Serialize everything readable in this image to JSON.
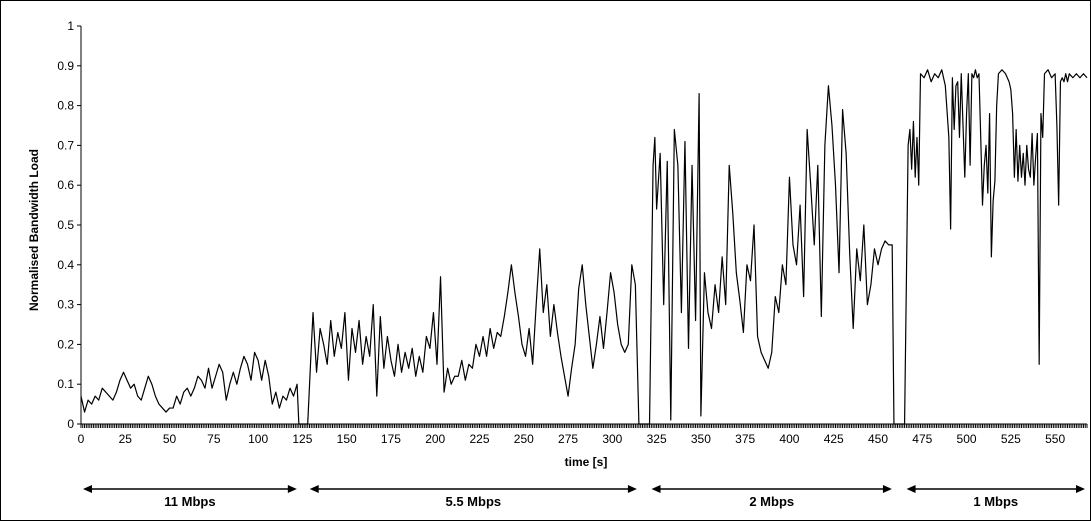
{
  "chart_data": {
    "type": "line",
    "title": "",
    "xlabel": "time [s]",
    "ylabel": "Normalised Bandwidth Load",
    "xlim": [
      0,
      568
    ],
    "ylim": [
      0,
      1
    ],
    "x_ticks": [
      0,
      25,
      50,
      75,
      100,
      125,
      150,
      175,
      200,
      225,
      250,
      275,
      300,
      325,
      350,
      375,
      400,
      425,
      450,
      475,
      500,
      525,
      550
    ],
    "y_ticks": [
      0,
      0.1,
      0.2,
      0.3,
      0.4,
      0.5,
      0.6,
      0.7,
      0.8,
      0.9,
      1
    ],
    "grid": false,
    "line_color": "#000000",
    "series": [
      {
        "points": [
          [
            0,
            0.07
          ],
          [
            2,
            0.03
          ],
          [
            4,
            0.06
          ],
          [
            6,
            0.05
          ],
          [
            8,
            0.07
          ],
          [
            10,
            0.06
          ],
          [
            12,
            0.09
          ],
          [
            14,
            0.08
          ],
          [
            16,
            0.07
          ],
          [
            18,
            0.06
          ],
          [
            20,
            0.08
          ],
          [
            22,
            0.11
          ],
          [
            24,
            0.13
          ],
          [
            26,
            0.11
          ],
          [
            28,
            0.09
          ],
          [
            30,
            0.1
          ],
          [
            32,
            0.07
          ],
          [
            34,
            0.06
          ],
          [
            36,
            0.09
          ],
          [
            38,
            0.12
          ],
          [
            40,
            0.1
          ],
          [
            42,
            0.07
          ],
          [
            44,
            0.05
          ],
          [
            46,
            0.04
          ],
          [
            48,
            0.03
          ],
          [
            50,
            0.04
          ],
          [
            52,
            0.04
          ],
          [
            54,
            0.07
          ],
          [
            56,
            0.05
          ],
          [
            58,
            0.08
          ],
          [
            60,
            0.09
          ],
          [
            62,
            0.07
          ],
          [
            64,
            0.09
          ],
          [
            66,
            0.12
          ],
          [
            68,
            0.11
          ],
          [
            70,
            0.09
          ],
          [
            72,
            0.14
          ],
          [
            74,
            0.09
          ],
          [
            76,
            0.12
          ],
          [
            78,
            0.15
          ],
          [
            80,
            0.13
          ],
          [
            82,
            0.06
          ],
          [
            84,
            0.1
          ],
          [
            86,
            0.13
          ],
          [
            88,
            0.1
          ],
          [
            90,
            0.14
          ],
          [
            92,
            0.17
          ],
          [
            94,
            0.15
          ],
          [
            96,
            0.11
          ],
          [
            98,
            0.18
          ],
          [
            100,
            0.16
          ],
          [
            102,
            0.11
          ],
          [
            104,
            0.16
          ],
          [
            106,
            0.12
          ],
          [
            108,
            0.05
          ],
          [
            110,
            0.08
          ],
          [
            112,
            0.04
          ],
          [
            114,
            0.07
          ],
          [
            116,
            0.06
          ],
          [
            118,
            0.09
          ],
          [
            120,
            0.07
          ],
          [
            122,
            0.1
          ],
          [
            123,
            0.0
          ],
          [
            128,
            0.0
          ],
          [
            130,
            0.19
          ],
          [
            131,
            0.28
          ],
          [
            133,
            0.13
          ],
          [
            135,
            0.24
          ],
          [
            137,
            0.2
          ],
          [
            139,
            0.15
          ],
          [
            141,
            0.26
          ],
          [
            143,
            0.17
          ],
          [
            145,
            0.23
          ],
          [
            147,
            0.19
          ],
          [
            149,
            0.28
          ],
          [
            151,
            0.11
          ],
          [
            153,
            0.24
          ],
          [
            155,
            0.18
          ],
          [
            157,
            0.26
          ],
          [
            159,
            0.15
          ],
          [
            161,
            0.22
          ],
          [
            163,
            0.17
          ],
          [
            165,
            0.3
          ],
          [
            167,
            0.07
          ],
          [
            169,
            0.27
          ],
          [
            171,
            0.14
          ],
          [
            173,
            0.22
          ],
          [
            175,
            0.16
          ],
          [
            177,
            0.12
          ],
          [
            179,
            0.2
          ],
          [
            181,
            0.13
          ],
          [
            183,
            0.18
          ],
          [
            185,
            0.14
          ],
          [
            187,
            0.19
          ],
          [
            189,
            0.12
          ],
          [
            191,
            0.17
          ],
          [
            193,
            0.13
          ],
          [
            195,
            0.22
          ],
          [
            197,
            0.19
          ],
          [
            199,
            0.28
          ],
          [
            201,
            0.15
          ],
          [
            203,
            0.37
          ],
          [
            205,
            0.08
          ],
          [
            207,
            0.14
          ],
          [
            209,
            0.1
          ],
          [
            211,
            0.12
          ],
          [
            213,
            0.12
          ],
          [
            215,
            0.16
          ],
          [
            217,
            0.11
          ],
          [
            219,
            0.15
          ],
          [
            221,
            0.14
          ],
          [
            223,
            0.2
          ],
          [
            225,
            0.17
          ],
          [
            227,
            0.22
          ],
          [
            229,
            0.17
          ],
          [
            231,
            0.24
          ],
          [
            233,
            0.19
          ],
          [
            235,
            0.23
          ],
          [
            237,
            0.22
          ],
          [
            239,
            0.27
          ],
          [
            241,
            0.33
          ],
          [
            243,
            0.4
          ],
          [
            245,
            0.33
          ],
          [
            247,
            0.27
          ],
          [
            249,
            0.2
          ],
          [
            251,
            0.17
          ],
          [
            253,
            0.24
          ],
          [
            255,
            0.15
          ],
          [
            257,
            0.3
          ],
          [
            259,
            0.44
          ],
          [
            261,
            0.28
          ],
          [
            263,
            0.35
          ],
          [
            265,
            0.22
          ],
          [
            267,
            0.3
          ],
          [
            269,
            0.23
          ],
          [
            271,
            0.17
          ],
          [
            273,
            0.12
          ],
          [
            275,
            0.07
          ],
          [
            277,
            0.14
          ],
          [
            279,
            0.2
          ],
          [
            281,
            0.34
          ],
          [
            283,
            0.4
          ],
          [
            285,
            0.3
          ],
          [
            287,
            0.22
          ],
          [
            289,
            0.14
          ],
          [
            291,
            0.2
          ],
          [
            293,
            0.27
          ],
          [
            295,
            0.19
          ],
          [
            297,
            0.28
          ],
          [
            299,
            0.38
          ],
          [
            301,
            0.33
          ],
          [
            303,
            0.25
          ],
          [
            305,
            0.2
          ],
          [
            307,
            0.18
          ],
          [
            309,
            0.2
          ],
          [
            311,
            0.4
          ],
          [
            313,
            0.35
          ],
          [
            315,
            0.0
          ],
          [
            321,
            0.0
          ],
          [
            323,
            0.65
          ],
          [
            324,
            0.72
          ],
          [
            325,
            0.54
          ],
          [
            327,
            0.68
          ],
          [
            329,
            0.3
          ],
          [
            331,
            0.66
          ],
          [
            333,
            0.01
          ],
          [
            335,
            0.74
          ],
          [
            337,
            0.65
          ],
          [
            339,
            0.28
          ],
          [
            341,
            0.71
          ],
          [
            343,
            0.19
          ],
          [
            345,
            0.65
          ],
          [
            347,
            0.26
          ],
          [
            349,
            0.83
          ],
          [
            350,
            0.02
          ],
          [
            352,
            0.38
          ],
          [
            354,
            0.28
          ],
          [
            356,
            0.24
          ],
          [
            358,
            0.35
          ],
          [
            360,
            0.28
          ],
          [
            362,
            0.42
          ],
          [
            364,
            0.3
          ],
          [
            366,
            0.65
          ],
          [
            368,
            0.53
          ],
          [
            370,
            0.38
          ],
          [
            372,
            0.31
          ],
          [
            374,
            0.23
          ],
          [
            376,
            0.4
          ],
          [
            378,
            0.36
          ],
          [
            380,
            0.5
          ],
          [
            382,
            0.22
          ],
          [
            384,
            0.18
          ],
          [
            386,
            0.16
          ],
          [
            388,
            0.14
          ],
          [
            390,
            0.18
          ],
          [
            392,
            0.32
          ],
          [
            394,
            0.28
          ],
          [
            396,
            0.4
          ],
          [
            398,
            0.35
          ],
          [
            400,
            0.62
          ],
          [
            402,
            0.45
          ],
          [
            404,
            0.4
          ],
          [
            406,
            0.55
          ],
          [
            408,
            0.32
          ],
          [
            410,
            0.74
          ],
          [
            412,
            0.6
          ],
          [
            414,
            0.45
          ],
          [
            416,
            0.65
          ],
          [
            418,
            0.27
          ],
          [
            420,
            0.7
          ],
          [
            422,
            0.85
          ],
          [
            424,
            0.75
          ],
          [
            426,
            0.6
          ],
          [
            428,
            0.38
          ],
          [
            430,
            0.79
          ],
          [
            432,
            0.68
          ],
          [
            434,
            0.43
          ],
          [
            436,
            0.24
          ],
          [
            438,
            0.44
          ],
          [
            440,
            0.36
          ],
          [
            442,
            0.5
          ],
          [
            444,
            0.3
          ],
          [
            446,
            0.35
          ],
          [
            448,
            0.44
          ],
          [
            450,
            0.4
          ],
          [
            452,
            0.44
          ],
          [
            454,
            0.46
          ],
          [
            456,
            0.45
          ],
          [
            458,
            0.45
          ],
          [
            459,
            0.0
          ],
          [
            465,
            0.0
          ],
          [
            467,
            0.7
          ],
          [
            468,
            0.74
          ],
          [
            469,
            0.64
          ],
          [
            470,
            0.76
          ],
          [
            471,
            0.62
          ],
          [
            472,
            0.72
          ],
          [
            473,
            0.6
          ],
          [
            474,
            0.88
          ],
          [
            476,
            0.87
          ],
          [
            478,
            0.89
          ],
          [
            480,
            0.86
          ],
          [
            482,
            0.88
          ],
          [
            484,
            0.87
          ],
          [
            486,
            0.89
          ],
          [
            488,
            0.85
          ],
          [
            490,
            0.72
          ],
          [
            491,
            0.49
          ],
          [
            492,
            0.87
          ],
          [
            493,
            0.74
          ],
          [
            494,
            0.85
          ],
          [
            495,
            0.86
          ],
          [
            496,
            0.72
          ],
          [
            497,
            0.88
          ],
          [
            498,
            0.75
          ],
          [
            499,
            0.62
          ],
          [
            500,
            0.78
          ],
          [
            501,
            0.88
          ],
          [
            502,
            0.65
          ],
          [
            503,
            0.88
          ],
          [
            504,
            0.87
          ],
          [
            505,
            0.89
          ],
          [
            506,
            0.87
          ],
          [
            507,
            0.88
          ],
          [
            508,
            0.72
          ],
          [
            509,
            0.55
          ],
          [
            510,
            0.65
          ],
          [
            511,
            0.7
          ],
          [
            512,
            0.58
          ],
          [
            513,
            0.78
          ],
          [
            514,
            0.42
          ],
          [
            515,
            0.56
          ],
          [
            516,
            0.61
          ],
          [
            517,
            0.8
          ],
          [
            518,
            0.88
          ],
          [
            520,
            0.89
          ],
          [
            522,
            0.88
          ],
          [
            524,
            0.86
          ],
          [
            525,
            0.84
          ],
          [
            526,
            0.78
          ],
          [
            527,
            0.62
          ],
          [
            528,
            0.74
          ],
          [
            529,
            0.61
          ],
          [
            530,
            0.7
          ],
          [
            531,
            0.62
          ],
          [
            532,
            0.68
          ],
          [
            533,
            0.6
          ],
          [
            534,
            0.7
          ],
          [
            535,
            0.64
          ],
          [
            536,
            0.62
          ],
          [
            537,
            0.73
          ],
          [
            538,
            0.6
          ],
          [
            539,
            0.67
          ],
          [
            540,
            0.73
          ],
          [
            541,
            0.15
          ],
          [
            542,
            0.78
          ],
          [
            543,
            0.72
          ],
          [
            544,
            0.88
          ],
          [
            546,
            0.89
          ],
          [
            548,
            0.87
          ],
          [
            550,
            0.88
          ],
          [
            551,
            0.75
          ],
          [
            552,
            0.55
          ],
          [
            553,
            0.86
          ],
          [
            554,
            0.87
          ],
          [
            555,
            0.86
          ],
          [
            556,
            0.88
          ],
          [
            557,
            0.86
          ],
          [
            558,
            0.88
          ],
          [
            560,
            0.87
          ],
          [
            562,
            0.88
          ],
          [
            564,
            0.87
          ],
          [
            566,
            0.88
          ],
          [
            568,
            0.87
          ]
        ]
      }
    ],
    "rate_segments": [
      {
        "label": "11 Mbps",
        "from": 0,
        "to": 123
      },
      {
        "label": "5.5 Mbps",
        "from": 128,
        "to": 315
      },
      {
        "label": "2 Mbps",
        "from": 321,
        "to": 459
      },
      {
        "label": "1 Mbps",
        "from": 465,
        "to": 568
      }
    ]
  }
}
